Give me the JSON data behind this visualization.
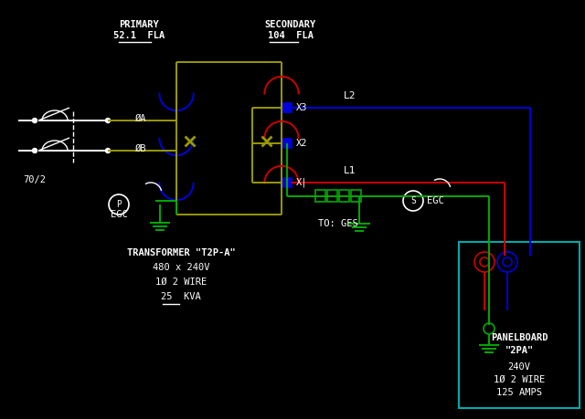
{
  "bg": "#000000",
  "W": "#ffffff",
  "Y": "#999900",
  "B": "#0000dd",
  "R": "#cc0000",
  "G": "#00aa00",
  "C": "#00aaaa",
  "title_primary": "PRIMARY",
  "sub_primary": "52.1  FLA",
  "title_secondary": "SECONDARY",
  "sub_secondary": "104  FLA",
  "label_70_2": "70/2",
  "label_phA": "ØA",
  "label_phB": "ØB",
  "label_X3": "X3",
  "label_X2": "X2",
  "label_X1": "X|",
  "label_L2": "L2",
  "label_L1": "L1",
  "label_EGC": "EGC",
  "label_TO_GES": "TO: GES",
  "xfmr1": "TRANSFORMER \"T2P-A\"",
  "xfmr2": "480 x 240V",
  "xfmr3": "1Ø 2 WIRE",
  "xfmr4": "25  KVA",
  "pb1": "PANELBOARD",
  "pb2": "\"2PA\"",
  "pb3": "240V",
  "pb4": "1Ø 2 WIRE",
  "pb5": "125 AMPS"
}
